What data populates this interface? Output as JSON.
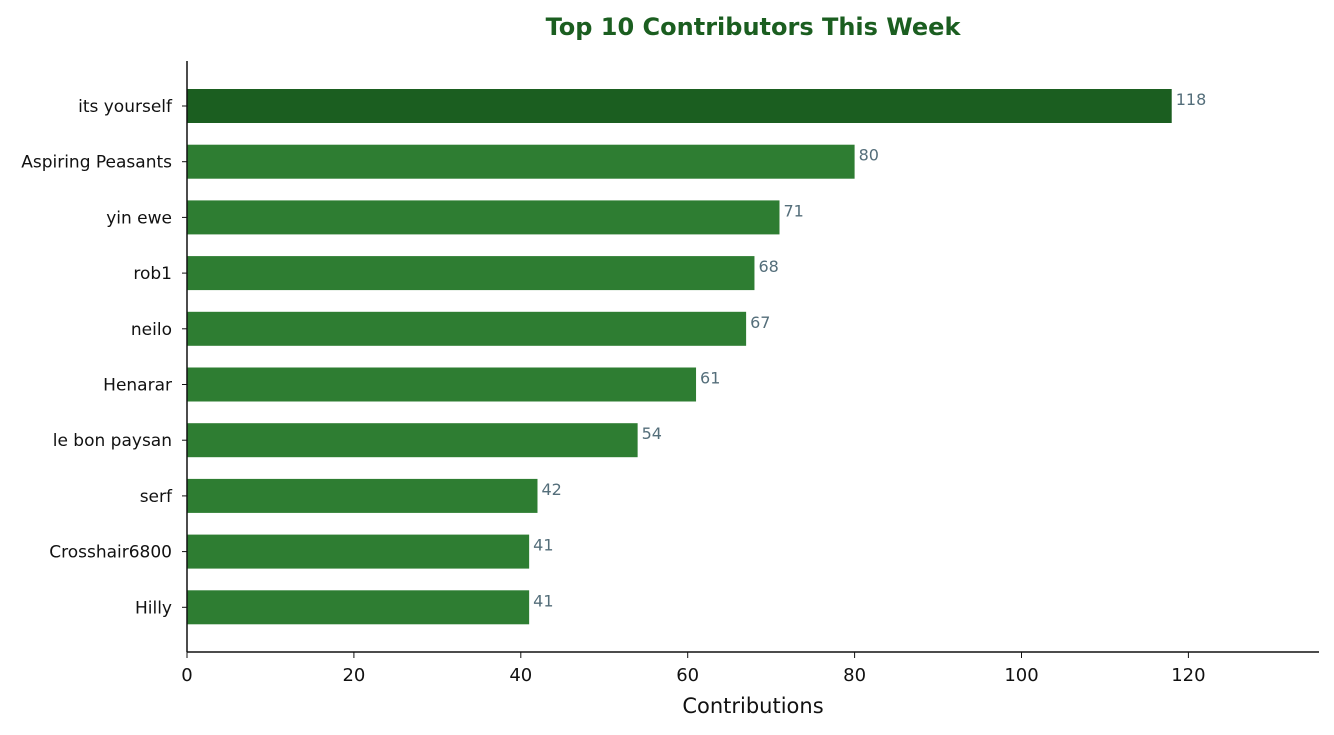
{
  "chart_data": {
    "type": "bar",
    "orientation": "horizontal",
    "title": "Top 10 Contributors This Week",
    "xlabel": "Contributions",
    "ylabel": "",
    "categories": [
      "its yourself",
      "Aspiring Peasants",
      "yin ewe",
      "rob1",
      "neilo",
      "Henarar",
      "le bon paysan",
      "serf",
      "Crosshair6800",
      "Hilly"
    ],
    "values": [
      118,
      80,
      71,
      68,
      67,
      61,
      54,
      42,
      41,
      41
    ],
    "xlim": [
      0,
      135
    ],
    "xticks": [
      0,
      20,
      40,
      60,
      80,
      100,
      120
    ],
    "grid": false,
    "legend": "none",
    "colors": {
      "title": "#1b5e20",
      "highlight_bar": "#1b5e20",
      "bar": "#2e7d32",
      "data_label": "#546e7a",
      "axis": "#111111"
    }
  }
}
